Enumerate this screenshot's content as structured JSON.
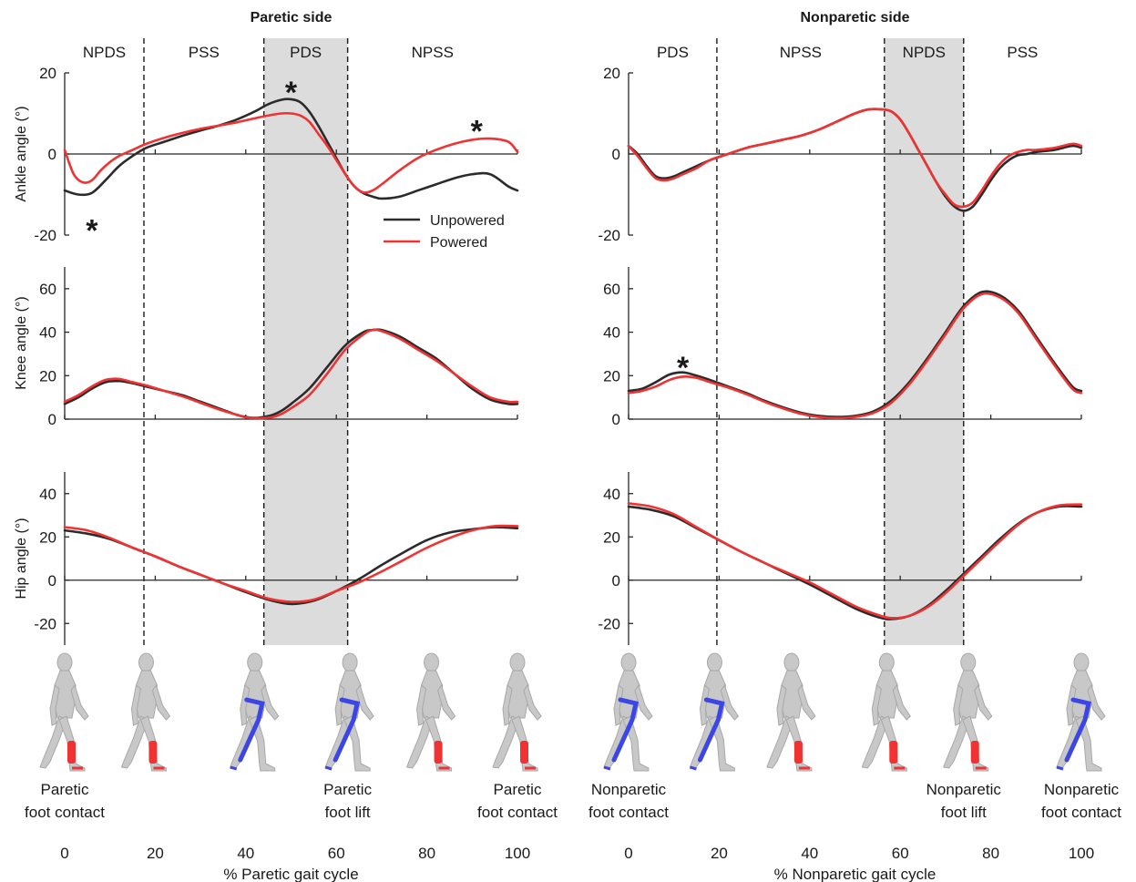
{
  "colors": {
    "unpowered": "#2b2b2b",
    "powered": "#f03232",
    "shade": "#dcdcdc",
    "muscle_red": "#f03232",
    "muscle_blue": "#3c46e6",
    "body": "#c8c8c8"
  },
  "legend": {
    "unpowered": "Unpowered",
    "powered": "Powered",
    "placement": "top-right"
  },
  "chart_data": [
    {
      "type": "line",
      "panel": "paretic-ankle",
      "title": "Paretic side",
      "ylabel": "Ankle angle (°)",
      "xlim": [
        0,
        100
      ],
      "ylim": [
        -20,
        20
      ],
      "yticks": [
        -20,
        0,
        20
      ],
      "phases": [
        {
          "label": "NPDS",
          "start": 0,
          "end": 17.5
        },
        {
          "label": "PSS",
          "start": 17.5,
          "end": 44
        },
        {
          "label": "PDS",
          "start": 44,
          "end": 62.5,
          "shaded": true
        },
        {
          "label": "NPSS",
          "start": 62.5,
          "end": 100
        }
      ],
      "stars": [
        {
          "x": 6,
          "y": -16.5
        },
        {
          "x": 50,
          "y": 17.5
        },
        {
          "x": 91,
          "y": 8
        }
      ],
      "series": [
        {
          "name": "Unpowered",
          "x": [
            0,
            3,
            6,
            9,
            12,
            15,
            18,
            22,
            26,
            30,
            34,
            38,
            42,
            45,
            48,
            50,
            52,
            54,
            56,
            58,
            60,
            62,
            64,
            66,
            68,
            70,
            74,
            78,
            82,
            86,
            90,
            94,
            98,
            100
          ],
          "y": [
            -9,
            -10,
            -9.6,
            -6.5,
            -3,
            -0.5,
            1.5,
            3,
            4.5,
            5.8,
            7,
            8.5,
            10.5,
            12.3,
            13.4,
            13.5,
            12.8,
            10.5,
            7,
            3,
            -1,
            -5,
            -8,
            -9.7,
            -10.5,
            -11,
            -10.5,
            -9,
            -7.5,
            -6,
            -5,
            -5,
            -8,
            -9
          ]
        },
        {
          "name": "Powered",
          "x": [
            0,
            2,
            4,
            6,
            8,
            10,
            12,
            15,
            18,
            22,
            26,
            30,
            34,
            38,
            42,
            45,
            48,
            50,
            52,
            54,
            56,
            58,
            60,
            62,
            64,
            66,
            68,
            70,
            74,
            78,
            82,
            86,
            90,
            94,
            98,
            100
          ],
          "y": [
            1,
            -5,
            -7,
            -6.5,
            -4,
            -2,
            -0.5,
            1,
            2.5,
            4,
            5.2,
            6.2,
            7,
            7.8,
            8.8,
            9.5,
            10,
            10,
            9.5,
            8,
            5,
            2,
            -1.5,
            -5,
            -8,
            -9.5,
            -9,
            -7.5,
            -4,
            -1,
            1,
            2.5,
            3.5,
            3.8,
            3,
            0.5
          ]
        }
      ]
    },
    {
      "type": "line",
      "panel": "paretic-knee",
      "ylabel": "Knee angle (°)",
      "xlim": [
        0,
        100
      ],
      "ylim": [
        0,
        70
      ],
      "yticks": [
        0,
        20,
        40,
        60
      ],
      "stars": [],
      "series": [
        {
          "name": "Unpowered",
          "x": [
            0,
            3,
            6,
            9,
            12,
            15,
            18,
            22,
            26,
            30,
            34,
            38,
            40,
            42,
            44,
            46,
            48,
            50,
            54,
            58,
            62,
            66,
            68,
            70,
            74,
            78,
            82,
            86,
            90,
            94,
            98,
            100
          ],
          "y": [
            7,
            10,
            14,
            17,
            17.5,
            16.5,
            15,
            13,
            11,
            8,
            5,
            2,
            1,
            0.6,
            1,
            2,
            4,
            7,
            14,
            24,
            34,
            40,
            41,
            41,
            38,
            33,
            28,
            21,
            14,
            9,
            7,
            7
          ]
        },
        {
          "name": "Powered",
          "x": [
            0,
            3,
            6,
            9,
            12,
            15,
            18,
            22,
            26,
            30,
            34,
            38,
            40,
            42,
            44,
            46,
            48,
            50,
            54,
            58,
            62,
            66,
            68,
            70,
            74,
            78,
            82,
            86,
            90,
            94,
            98,
            100
          ],
          "y": [
            8,
            11,
            15,
            18,
            18.5,
            17,
            15.5,
            13,
            10.5,
            7.5,
            4.5,
            2,
            0.8,
            0.5,
            0.5,
            1,
            2.5,
            5,
            11,
            21,
            32,
            39,
            41,
            40.5,
            37,
            32,
            27,
            21,
            15,
            10,
            8,
            8
          ]
        }
      ]
    },
    {
      "type": "line",
      "panel": "paretic-hip",
      "ylabel": "Hip angle (°)",
      "xlim": [
        0,
        100
      ],
      "ylim": [
        -30,
        50
      ],
      "yticks": [
        -20,
        0,
        20,
        40
      ],
      "stars": [],
      "series": [
        {
          "name": "Unpowered",
          "x": [
            0,
            5,
            10,
            15,
            20,
            25,
            30,
            35,
            40,
            45,
            50,
            55,
            60,
            65,
            70,
            75,
            80,
            85,
            90,
            95,
            100
          ],
          "y": [
            23,
            21.5,
            19,
            15,
            11,
            6.5,
            2.5,
            -1.5,
            -5.5,
            -9,
            -11,
            -9.5,
            -5,
            0.5,
            7,
            13,
            18.5,
            22,
            23.5,
            24.5,
            24
          ]
        },
        {
          "name": "Powered",
          "x": [
            0,
            5,
            10,
            15,
            20,
            25,
            30,
            35,
            40,
            45,
            50,
            55,
            60,
            65,
            70,
            75,
            80,
            85,
            90,
            95,
            100
          ],
          "y": [
            24.5,
            23,
            19.5,
            15,
            11,
            6.5,
            2.5,
            -1.5,
            -5,
            -8.5,
            -10,
            -9,
            -5,
            -1,
            4,
            9.5,
            15,
            19.5,
            23,
            25,
            25
          ]
        }
      ]
    },
    {
      "type": "line",
      "panel": "nonparetic-ankle",
      "title": "Nonparetic side",
      "ylabel": "",
      "xlim": [
        0,
        100
      ],
      "ylim": [
        -20,
        20
      ],
      "yticks": [
        -20,
        0,
        20
      ],
      "phases": [
        {
          "label": "PDS",
          "start": 0,
          "end": 19.5
        },
        {
          "label": "NPSS",
          "start": 19.5,
          "end": 56.5
        },
        {
          "label": "NPDS",
          "start": 56.5,
          "end": 74,
          "shaded": true
        },
        {
          "label": "PSS",
          "start": 74,
          "end": 100
        }
      ],
      "stars": [],
      "series": [
        {
          "name": "Unpowered",
          "x": [
            0,
            2,
            4,
            6,
            8,
            10,
            12,
            15,
            18,
            22,
            26,
            30,
            34,
            38,
            42,
            46,
            50,
            53,
            56,
            58,
            60,
            62,
            64,
            66,
            68,
            70,
            72,
            74,
            76,
            78,
            80,
            82,
            84,
            86,
            88,
            90,
            94,
            98,
            100
          ],
          "y": [
            2,
            0,
            -3,
            -5.5,
            -6,
            -5.5,
            -4.5,
            -3,
            -1.5,
            0,
            1.5,
            2.5,
            3.5,
            4.5,
            6,
            8,
            10,
            11,
            11,
            10.5,
            8.5,
            5,
            1,
            -3,
            -7,
            -10.5,
            -13,
            -14,
            -13,
            -10,
            -6.5,
            -3.5,
            -1.5,
            -0.3,
            0,
            0.5,
            1,
            2,
            1.5
          ]
        },
        {
          "name": "Powered",
          "x": [
            0,
            2,
            4,
            6,
            8,
            10,
            12,
            15,
            18,
            22,
            26,
            30,
            34,
            38,
            42,
            46,
            50,
            53,
            56,
            58,
            60,
            62,
            64,
            66,
            68,
            70,
            72,
            74,
            76,
            78,
            80,
            82,
            84,
            86,
            88,
            90,
            94,
            98,
            100
          ],
          "y": [
            2,
            -0.5,
            -3.5,
            -6,
            -6.5,
            -6,
            -5,
            -3.5,
            -1.5,
            0,
            1.5,
            2.5,
            3.5,
            4.5,
            6,
            8,
            10,
            11,
            11,
            10.5,
            8.5,
            5,
            1,
            -3,
            -7,
            -10,
            -12.5,
            -13,
            -12,
            -9,
            -5.5,
            -2.5,
            -0.5,
            0.5,
            1,
            1,
            1.5,
            2.5,
            2
          ]
        }
      ]
    },
    {
      "type": "line",
      "panel": "nonparetic-knee",
      "ylabel": "",
      "xlim": [
        0,
        100
      ],
      "ylim": [
        0,
        70
      ],
      "yticks": [
        0,
        20,
        40,
        60
      ],
      "stars": [
        {
          "x": 12,
          "y": 28
        }
      ],
      "series": [
        {
          "name": "Unpowered",
          "x": [
            0,
            3,
            6,
            9,
            12,
            15,
            18,
            22,
            26,
            30,
            34,
            38,
            42,
            46,
            50,
            54,
            58,
            62,
            66,
            70,
            74,
            78,
            82,
            86,
            90,
            94,
            98,
            100
          ],
          "y": [
            13,
            14,
            17,
            20.5,
            21.5,
            20,
            18,
            15,
            12,
            8.5,
            5.5,
            3,
            1.5,
            1,
            1.5,
            3.5,
            8.5,
            17,
            28,
            40,
            52,
            58.5,
            57,
            50,
            38,
            26,
            15,
            13
          ]
        },
        {
          "name": "Powered",
          "x": [
            0,
            3,
            6,
            9,
            12,
            15,
            18,
            22,
            26,
            30,
            34,
            38,
            42,
            46,
            50,
            54,
            58,
            62,
            66,
            70,
            74,
            78,
            82,
            86,
            90,
            94,
            98,
            100
          ],
          "y": [
            12,
            13,
            15,
            18,
            19.5,
            19,
            17,
            14.5,
            11.5,
            8,
            5,
            2.5,
            1,
            0.5,
            1,
            2.8,
            7.5,
            16,
            27,
            39,
            51,
            57.5,
            56,
            49,
            37,
            25,
            14,
            12
          ]
        }
      ]
    },
    {
      "type": "line",
      "panel": "nonparetic-hip",
      "ylabel": "",
      "xlim": [
        0,
        100
      ],
      "ylim": [
        -30,
        50
      ],
      "yticks": [
        -20,
        0,
        20,
        40
      ],
      "stars": [],
      "series": [
        {
          "name": "Unpowered",
          "x": [
            0,
            5,
            10,
            15,
            20,
            25,
            30,
            35,
            40,
            45,
            50,
            55,
            58,
            62,
            66,
            70,
            74,
            78,
            82,
            86,
            90,
            95,
            100
          ],
          "y": [
            34,
            32.5,
            29.5,
            24,
            18.5,
            13,
            8,
            3,
            -2,
            -7.5,
            -13,
            -17,
            -18,
            -16.5,
            -12,
            -5,
            3,
            11,
            19,
            26,
            31,
            34,
            34
          ]
        },
        {
          "name": "Powered",
          "x": [
            0,
            5,
            10,
            15,
            20,
            25,
            30,
            35,
            40,
            45,
            50,
            55,
            58,
            62,
            66,
            70,
            74,
            78,
            82,
            86,
            90,
            95,
            100
          ],
          "y": [
            35.5,
            34,
            30.5,
            24.5,
            18.5,
            13,
            8,
            3.5,
            -1,
            -6.5,
            -12,
            -16,
            -17.5,
            -16.5,
            -12.5,
            -6,
            2,
            10,
            18,
            25.5,
            31,
            34.5,
            35
          ]
        }
      ]
    }
  ],
  "events": {
    "left": [
      {
        "x": 0,
        "line1": "Paretic",
        "line2": "foot contact"
      },
      {
        "x": 62.5,
        "line1": "Paretic",
        "line2": "foot lift"
      },
      {
        "x": 100,
        "line1": "Paretic",
        "line2": "foot contact"
      }
    ],
    "right": [
      {
        "x": 0,
        "line1": "Nonparetic",
        "line2": "foot contact"
      },
      {
        "x": 74,
        "line1": "Nonparetic",
        "line2": "foot lift"
      },
      {
        "x": 100,
        "line1": "Nonparetic",
        "line2": "foot contact"
      }
    ]
  },
  "figures": {
    "left": [
      {
        "x": 0,
        "muscle": "red"
      },
      {
        "x": 18,
        "muscle": "red"
      },
      {
        "x": 42,
        "muscle": "blue"
      },
      {
        "x": 63,
        "muscle": "blue"
      },
      {
        "x": 81,
        "muscle": "red"
      },
      {
        "x": 100,
        "muscle": "red"
      }
    ],
    "right": [
      {
        "x": 0,
        "muscle": "blue"
      },
      {
        "x": 19,
        "muscle": "blue"
      },
      {
        "x": 36,
        "muscle": "red"
      },
      {
        "x": 57,
        "muscle": "red"
      },
      {
        "x": 75,
        "muscle": "red"
      },
      {
        "x": 100,
        "muscle": "blue"
      }
    ]
  },
  "xaxis": {
    "ticks": [
      0,
      20,
      40,
      60,
      80,
      100
    ],
    "left_label": "% Paretic gait cycle",
    "right_label": "% Nonparetic gait cycle"
  }
}
